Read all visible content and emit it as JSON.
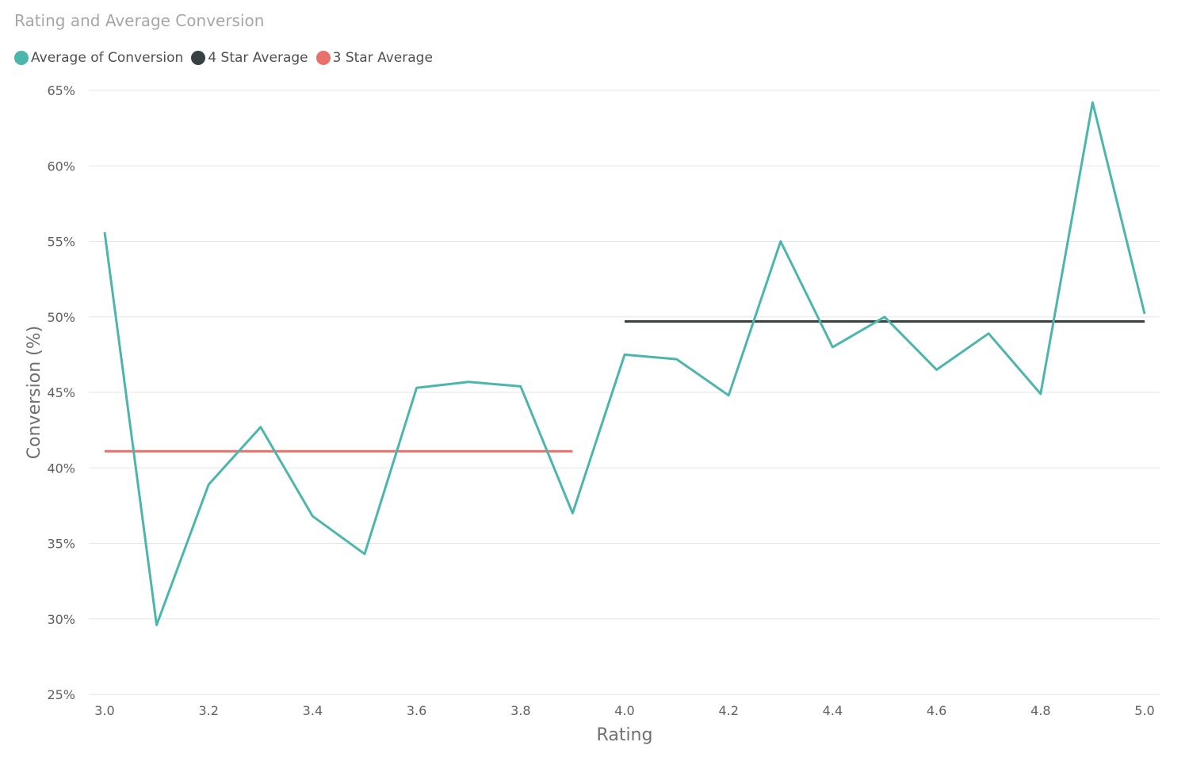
{
  "chart_data": {
    "type": "line",
    "title": "Rating and Average Conversion",
    "xlabel": "Rating",
    "ylabel": "Conversion (%)",
    "xlim": [
      3.0,
      5.0
    ],
    "ylim": [
      25,
      65
    ],
    "x_ticks": [
      "3.0",
      "3.2",
      "3.4",
      "3.6",
      "3.8",
      "4.0",
      "4.2",
      "4.4",
      "4.6",
      "4.8",
      "5.0"
    ],
    "y_ticks": [
      "25%",
      "30%",
      "35%",
      "40%",
      "45%",
      "50%",
      "55%",
      "60%",
      "65%"
    ],
    "grid": "horizontal",
    "legend_position": "top-left",
    "series": [
      {
        "name": "Average of Conversion",
        "color": "#4db6ac",
        "x": [
          3.0,
          3.1,
          3.2,
          3.3,
          3.4,
          3.5,
          3.6,
          3.7,
          3.8,
          3.9,
          4.0,
          4.1,
          4.2,
          4.3,
          4.4,
          4.5,
          4.6,
          4.7,
          4.8,
          4.9,
          5.0
        ],
        "values": [
          55.6,
          29.6,
          38.9,
          42.7,
          36.8,
          34.3,
          45.3,
          45.7,
          45.4,
          37.0,
          47.5,
          47.2,
          44.8,
          55.0,
          48.0,
          50.0,
          46.5,
          48.9,
          44.9,
          64.2,
          50.2
        ]
      },
      {
        "name": "4 Star Average",
        "color": "#374142",
        "x": [
          4.0,
          5.0
        ],
        "values": [
          49.7,
          49.7
        ]
      },
      {
        "name": "3 Star Average",
        "color": "#e8716b",
        "x": [
          3.0,
          3.9
        ],
        "values": [
          41.1,
          41.1
        ]
      }
    ]
  }
}
